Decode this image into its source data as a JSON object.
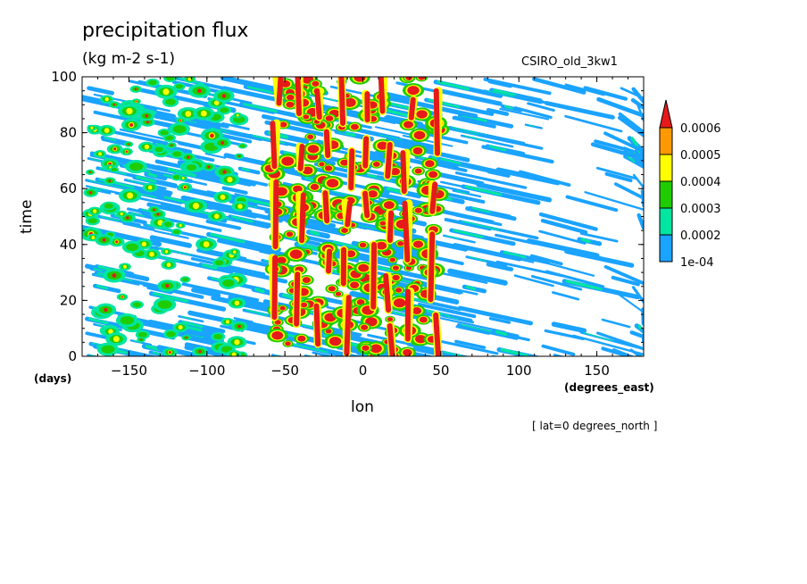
{
  "chart_data": {
    "type": "heatmap",
    "title": "precipitation flux",
    "units": "(kg m-2 s-1)",
    "run_label": "CSIRO_old_3kw1",
    "xlabel": "lon",
    "x_unit": "(degrees_east)",
    "ylabel": "time",
    "y_unit": "(days)",
    "subset_note": "[ lat=0 degrees_north ]",
    "xlim": [
      -180,
      180
    ],
    "ylim": [
      0,
      100
    ],
    "x_ticks": [
      -150,
      -100,
      -50,
      0,
      50,
      100,
      150
    ],
    "x_tick_labels": [
      "−150",
      "−100",
      "−50",
      "0",
      "50",
      "100",
      "150"
    ],
    "y_ticks": [
      0,
      20,
      40,
      60,
      80,
      100
    ],
    "y_tick_labels": [
      "0",
      "20",
      "40",
      "60",
      "80",
      "100"
    ],
    "colorbar": {
      "levels": [
        "1e-04",
        "0.0002",
        "0.0003",
        "0.0004",
        "0.0005",
        "0.0006"
      ],
      "colors": [
        "#1aa3ff",
        "#00e5a0",
        "#1fcc00",
        "#ffff00",
        "#ff9900",
        "#e61a1a"
      ],
      "extend": "max"
    },
    "convective_centers_lon": [
      -55,
      -40,
      -25,
      -10,
      5,
      15,
      30,
      45
    ],
    "grid": false
  }
}
